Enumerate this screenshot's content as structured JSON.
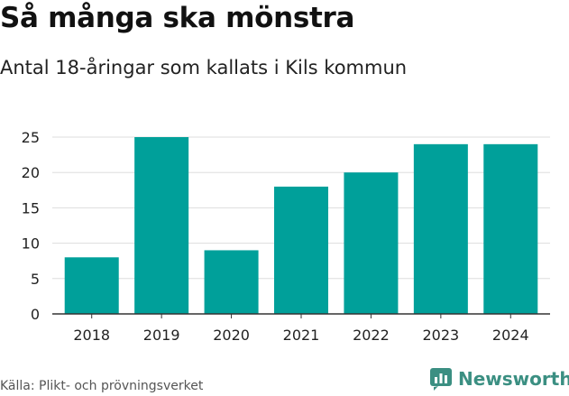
{
  "header": {
    "title": "Så många ska mönstra",
    "subtitle": "Antal 18-åringar som kallats i Kils kommun"
  },
  "footer": {
    "source": "Källa: Plikt- och prövningsverket",
    "brand": "Newsworthy"
  },
  "colors": {
    "bar": "#00A09A",
    "grid": "#dddddd",
    "axis": "#333333",
    "brand": "#3b8f82"
  },
  "chart_data": {
    "type": "bar",
    "title": "Så många ska mönstra",
    "subtitle": "Antal 18-åringar som kallats i Kils kommun",
    "categories": [
      "2018",
      "2019",
      "2020",
      "2021",
      "2022",
      "2023",
      "2024"
    ],
    "values": [
      8,
      25,
      9,
      18,
      20,
      24,
      24
    ],
    "yticks": [
      0,
      5,
      10,
      15,
      20,
      25
    ],
    "ylim": [
      0,
      25
    ],
    "xlabel": "",
    "ylabel": "",
    "grid": true
  }
}
